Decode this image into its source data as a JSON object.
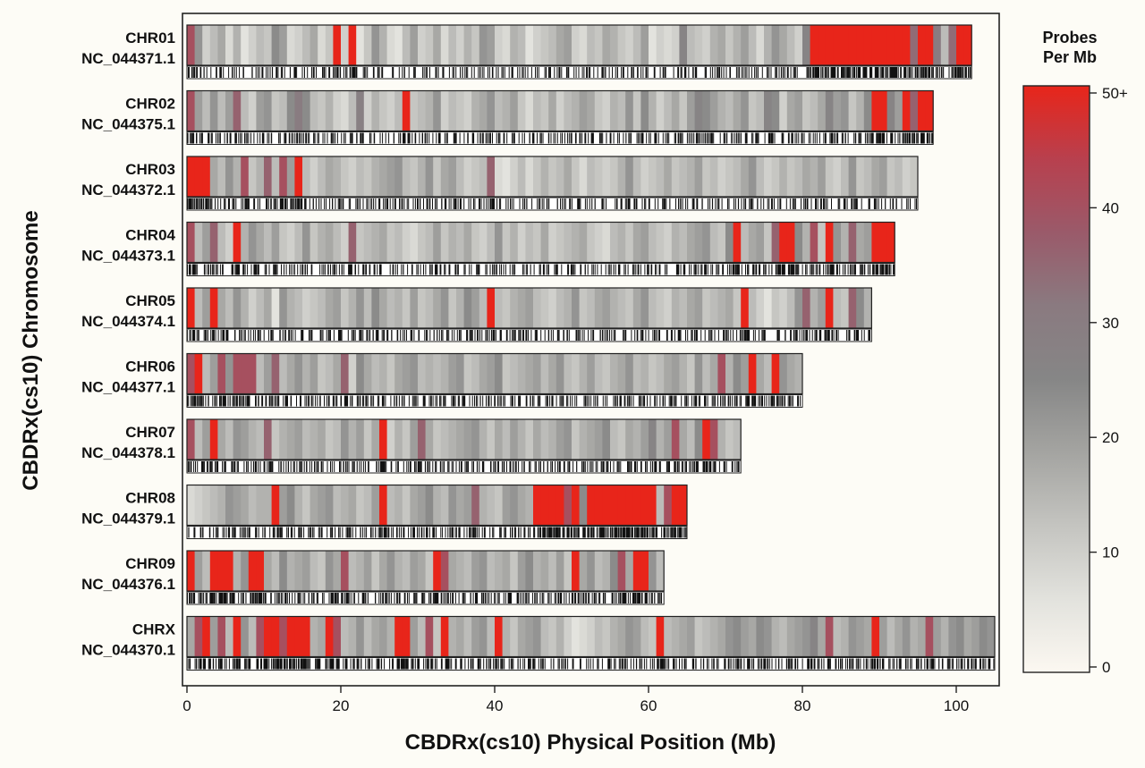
{
  "chart_data": {
    "type": "heatmap",
    "xlabel": "CBDRx(cs10) Physical Position (Mb)",
    "ylabel": "CBDRx(cs10) Chromosome",
    "xlim": [
      0,
      105
    ],
    "x_ticks": [
      0,
      20,
      40,
      60,
      80,
      100
    ],
    "bin_size_mb": 1,
    "grid": false,
    "colorbar": {
      "title_line1": "Probes",
      "title_line2": "Per Mb",
      "min": 0,
      "max": 50,
      "ticks": [
        0,
        10,
        20,
        30,
        40
      ],
      "top_label": "50+",
      "top_value": 50,
      "colors": [
        "#fcf8f1",
        "#e2e2dd",
        "#c4c4c0",
        "#a4a4a1",
        "#868686",
        "#8a7a80",
        "#9a5a6a",
        "#b8404e",
        "#e8251a"
      ]
    },
    "chromosomes": [
      {
        "name": "CHR01",
        "accession": "NC_044371.1",
        "length_mb": 102,
        "probe_density": [
          40,
          22,
          10,
          14,
          18,
          8,
          16,
          6,
          10,
          14,
          12,
          24,
          20,
          8,
          10,
          14,
          18,
          8,
          12,
          50,
          10,
          50,
          6,
          12,
          22,
          16,
          8,
          6,
          14,
          20,
          10,
          12,
          18,
          8,
          14,
          10,
          16,
          12,
          22,
          20,
          10,
          8,
          16,
          14,
          6,
          10,
          12,
          14,
          18,
          20,
          10,
          8,
          14,
          12,
          18,
          16,
          12,
          10,
          14,
          20,
          6,
          10,
          8,
          10,
          26,
          14,
          12,
          10,
          16,
          18,
          12,
          16,
          20,
          14,
          8,
          16,
          22,
          18,
          14,
          10,
          26,
          50,
          50,
          50,
          50,
          50,
          50,
          50,
          50,
          50,
          50,
          50,
          50,
          50,
          34,
          50,
          50,
          30,
          14,
          34,
          50,
          50
        ]
      },
      {
        "name": "CHR02",
        "accession": "NC_044375.1",
        "length_mb": 97,
        "probe_density": [
          40,
          20,
          14,
          22,
          14,
          20,
          36,
          14,
          10,
          20,
          22,
          12,
          14,
          24,
          30,
          24,
          14,
          12,
          16,
          10,
          8,
          14,
          28,
          10,
          16,
          12,
          10,
          14,
          50,
          12,
          14,
          16,
          22,
          10,
          14,
          12,
          10,
          16,
          18,
          22,
          14,
          16,
          20,
          12,
          8,
          14,
          12,
          18,
          10,
          14,
          16,
          20,
          18,
          12,
          10,
          16,
          14,
          22,
          12,
          24,
          16,
          10,
          14,
          18,
          12,
          20,
          26,
          24,
          20,
          16,
          14,
          18,
          22,
          12,
          14,
          26,
          24,
          10,
          18,
          20,
          12,
          14,
          18,
          26,
          20,
          22,
          12,
          16,
          24,
          50,
          50,
          26,
          20,
          50,
          36,
          50,
          50
        ]
      },
      {
        "name": "CHR03",
        "accession": "NC_044372.1",
        "length_mb": 95,
        "probe_density": [
          50,
          50,
          50,
          18,
          14,
          22,
          16,
          40,
          12,
          16,
          36,
          14,
          40,
          20,
          50,
          14,
          10,
          14,
          18,
          16,
          12,
          10,
          14,
          12,
          16,
          18,
          20,
          22,
          14,
          12,
          16,
          22,
          12,
          18,
          20,
          14,
          10,
          12,
          14,
          36,
          8,
          6,
          10,
          14,
          8,
          12,
          16,
          12,
          14,
          18,
          12,
          8,
          14,
          12,
          10,
          12,
          16,
          22,
          14,
          10,
          12,
          14,
          18,
          12,
          14,
          16,
          20,
          12,
          14,
          10,
          12,
          14,
          18,
          22,
          14,
          10,
          12,
          16,
          12,
          14,
          18,
          16,
          20,
          12,
          10,
          14,
          22,
          12,
          14,
          18,
          20,
          12,
          14,
          10,
          12
        ]
      },
      {
        "name": "CHR04",
        "accession": "NC_044373.1",
        "length_mb": 92,
        "probe_density": [
          40,
          14,
          20,
          36,
          14,
          10,
          50,
          16,
          22,
          18,
          14,
          20,
          12,
          10,
          14,
          22,
          12,
          16,
          18,
          14,
          10,
          36,
          12,
          14,
          16,
          18,
          12,
          14,
          10,
          8,
          12,
          14,
          20,
          12,
          16,
          14,
          18,
          12,
          10,
          14,
          22,
          12,
          16,
          10,
          14,
          12,
          18,
          10,
          12,
          14,
          16,
          18,
          12,
          10,
          8,
          14,
          16,
          12,
          18,
          20,
          14,
          12,
          10,
          16,
          14,
          18,
          20,
          22,
          14,
          12,
          24,
          50,
          14,
          18,
          20,
          12,
          36,
          50,
          50,
          24,
          16,
          40,
          12,
          50,
          22,
          16,
          36,
          18,
          20,
          50,
          50,
          50
        ]
      },
      {
        "name": "CHR05",
        "accession": "NC_044374.1",
        "length_mb": 89,
        "probe_density": [
          50,
          14,
          20,
          50,
          18,
          14,
          22,
          16,
          10,
          14,
          18,
          6,
          22,
          16,
          14,
          10,
          12,
          14,
          18,
          20,
          12,
          16,
          22,
          14,
          24,
          18,
          14,
          16,
          12,
          20,
          12,
          14,
          18,
          22,
          12,
          16,
          24,
          20,
          14,
          50,
          14,
          12,
          16,
          18,
          20,
          14,
          12,
          10,
          14,
          16,
          22,
          12,
          14,
          18,
          20,
          16,
          14,
          12,
          18,
          22,
          14,
          12,
          10,
          16,
          14,
          18,
          20,
          12,
          14,
          16,
          18,
          12,
          50,
          14,
          10,
          6,
          12,
          10,
          14,
          22,
          36,
          16,
          20,
          50,
          14,
          12,
          36,
          24,
          16
        ]
      },
      {
        "name": "CHR06",
        "accession": "NC_044377.1",
        "length_mb": 80,
        "probe_density": [
          40,
          50,
          14,
          20,
          40,
          22,
          40,
          40,
          40,
          14,
          20,
          36,
          14,
          18,
          22,
          16,
          20,
          12,
          14,
          18,
          36,
          10,
          24,
          18,
          14,
          16,
          12,
          18,
          20,
          22,
          14,
          16,
          14,
          16,
          20,
          22,
          12,
          14,
          18,
          20,
          24,
          12,
          14,
          16,
          18,
          20,
          14,
          18,
          22,
          14,
          12,
          16,
          20,
          14,
          12,
          16,
          18,
          22,
          14,
          16,
          12,
          14,
          18,
          20,
          16,
          12,
          22,
          14,
          18,
          40,
          16,
          24,
          20,
          50,
          18,
          14,
          50,
          22,
          18,
          16
        ]
      },
      {
        "name": "CHR07",
        "accession": "NC_044378.1",
        "length_mb": 72,
        "probe_density": [
          40,
          14,
          20,
          50,
          18,
          14,
          22,
          20,
          16,
          14,
          36,
          12,
          16,
          18,
          20,
          14,
          16,
          18,
          12,
          14,
          22,
          16,
          20,
          12,
          18,
          50,
          10,
          16,
          12,
          20,
          36,
          18,
          12,
          14,
          16,
          18,
          20,
          22,
          16,
          12,
          18,
          14,
          20,
          16,
          12,
          18,
          14,
          16,
          20,
          22,
          12,
          16,
          18,
          20,
          24,
          14,
          12,
          18,
          16,
          20,
          26,
          16,
          20,
          40,
          18,
          14,
          24,
          50,
          40,
          16,
          12,
          14
        ]
      },
      {
        "name": "CHR08",
        "accession": "NC_044379.1",
        "length_mb": 65,
        "probe_density": [
          8,
          10,
          12,
          14,
          16,
          22,
          20,
          18,
          14,
          16,
          16,
          50,
          20,
          24,
          16,
          12,
          18,
          20,
          22,
          14,
          16,
          18,
          12,
          14,
          20,
          50,
          14,
          16,
          12,
          18,
          20,
          24,
          16,
          14,
          22,
          18,
          20,
          36,
          16,
          14,
          12,
          20,
          22,
          18,
          16,
          50,
          50,
          50,
          50,
          40,
          50,
          24,
          50,
          50,
          50,
          50,
          50,
          50,
          50,
          50,
          50,
          14,
          40,
          50,
          50
        ]
      },
      {
        "name": "CHR09",
        "accession": "NC_044376.1",
        "length_mb": 62,
        "probe_density": [
          50,
          20,
          14,
          50,
          50,
          50,
          16,
          22,
          50,
          50,
          18,
          14,
          24,
          16,
          18,
          20,
          14,
          12,
          22,
          18,
          40,
          14,
          16,
          20,
          12,
          18,
          22,
          16,
          14,
          20,
          18,
          12,
          50,
          40,
          18,
          16,
          14,
          20,
          22,
          14,
          16,
          18,
          12,
          20,
          24,
          16,
          18,
          14,
          20,
          12,
          50,
          18,
          22,
          14,
          16,
          24,
          40,
          18,
          50,
          50,
          22,
          14
        ]
      },
      {
        "name": "CHRX",
        "accession": "NC_044370.1",
        "length_mb": 105,
        "probe_density": [
          18,
          40,
          50,
          20,
          40,
          14,
          50,
          22,
          14,
          40,
          50,
          50,
          40,
          50,
          50,
          50,
          16,
          18,
          50,
          40,
          14,
          16,
          22,
          14,
          18,
          20,
          16,
          50,
          50,
          20,
          14,
          40,
          12,
          50,
          16,
          18,
          14,
          20,
          22,
          14,
          50,
          16,
          12,
          18,
          20,
          22,
          14,
          12,
          16,
          10,
          6,
          8,
          10,
          14,
          12,
          16,
          18,
          22,
          20,
          14,
          12,
          50,
          14,
          16,
          18,
          20,
          12,
          14,
          16,
          18,
          22,
          24,
          20,
          18,
          24,
          22,
          16,
          14,
          18,
          20,
          22,
          26,
          18,
          40,
          14,
          16,
          22,
          20,
          18,
          50,
          20,
          14,
          18,
          22,
          16,
          18,
          40,
          20,
          16,
          22,
          24,
          18,
          20,
          24,
          22
        ]
      }
    ]
  }
}
